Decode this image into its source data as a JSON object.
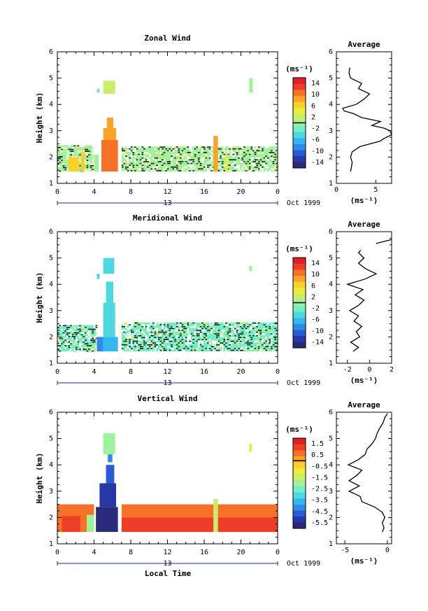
{
  "figure": {
    "xlabel": "Local Time",
    "date_label": "Oct 1999",
    "date_tick": "13",
    "height_label": "Height (km)",
    "unit_label": "(ms⁻¹)",
    "average_title": "Average"
  },
  "colors": {
    "scale": [
      "#2b2a7a",
      "#2837a6",
      "#2a5bd6",
      "#2f8be6",
      "#33b7ef",
      "#4ed8e0",
      "#72eec4",
      "#9ef29c",
      "#c8ee6a",
      "#ecec3c",
      "#fbd02c",
      "#fba428",
      "#f77226",
      "#ee3d28",
      "#e01f24"
    ]
  },
  "chart_data": [
    {
      "type": "heatmap",
      "title": "Zonal Wind",
      "ylabel": "Height (km)",
      "x_ticks": [
        "0",
        "4",
        "8",
        "12",
        "16",
        "20",
        "0"
      ],
      "xlim": [
        0,
        24
      ],
      "ylim": [
        1,
        6
      ],
      "y_ticks": [
        "1",
        "2",
        "3",
        "4",
        "5",
        "6"
      ],
      "colorbar": {
        "unit": "(ms⁻¹)",
        "range": [
          -15,
          15
        ],
        "tick_labels": [
          "14",
          "10",
          "6",
          "2",
          "-2",
          "-6",
          "-10",
          "-14"
        ]
      },
      "regions": [
        {
          "t0": 0.0,
          "t1": 3.9,
          "h0": 1.45,
          "h1": 2.45,
          "value": -1,
          "pattern": true
        },
        {
          "t0": 1.2,
          "t1": 2.4,
          "h0": 1.45,
          "h1": 2.0,
          "value": 6
        },
        {
          "t0": 2.6,
          "t1": 3.0,
          "h0": 1.45,
          "h1": 2.2,
          "value": 5
        },
        {
          "t0": 4.0,
          "t1": 4.5,
          "h0": 1.45,
          "h1": 2.1,
          "value": -1
        },
        {
          "t0": 4.8,
          "t1": 6.6,
          "h0": 1.45,
          "h1": 2.65,
          "value": 9
        },
        {
          "t0": 5.0,
          "t1": 6.4,
          "h0": 2.65,
          "h1": 3.1,
          "value": 8
        },
        {
          "t0": 5.4,
          "t1": 6.1,
          "h0": 3.1,
          "h1": 3.5,
          "value": 7
        },
        {
          "t0": 5.0,
          "t1": 6.3,
          "h0": 4.4,
          "h1": 4.9,
          "value": 1
        },
        {
          "t0": 4.3,
          "t1": 4.6,
          "h0": 4.45,
          "h1": 4.6,
          "value": -3
        },
        {
          "t0": 7.0,
          "t1": 24.0,
          "h0": 1.45,
          "h1": 2.4,
          "value": -1,
          "pattern": true
        },
        {
          "t0": 17.0,
          "t1": 17.5,
          "h0": 1.45,
          "h1": 2.8,
          "value": 7
        },
        {
          "t0": 18.3,
          "t1": 18.6,
          "h0": 1.45,
          "h1": 2.1,
          "value": 3
        },
        {
          "t0": 20.9,
          "t1": 21.3,
          "h0": 4.45,
          "h1": 5.0,
          "value": -1
        }
      ],
      "profile": {
        "title": "Average",
        "xlabel": "(ms⁻¹)",
        "x_ticks": [
          "0",
          "5"
        ],
        "xlim": [
          0,
          7
        ],
        "ylim": [
          1,
          6
        ],
        "y_ticks": [
          "1",
          "2",
          "3",
          "4",
          "5",
          "6"
        ],
        "height": [
          1.45,
          1.6,
          1.8,
          2.0,
          2.2,
          2.4,
          2.6,
          2.7,
          2.85,
          3.0,
          3.1,
          3.2,
          3.35,
          3.5,
          3.65,
          3.75,
          3.85,
          4.0,
          4.2,
          4.4,
          4.6,
          4.8,
          5.0,
          5.2,
          5.4
        ],
        "value": [
          1.8,
          1.9,
          2.0,
          1.8,
          2.0,
          3.0,
          5.5,
          6.0,
          7.0,
          6.8,
          6.0,
          4.5,
          5.6,
          3.2,
          2.2,
          1.0,
          0.8,
          2.5,
          3.5,
          4.2,
          2.8,
          3.2,
          1.8,
          1.6,
          1.7
        ]
      }
    },
    {
      "type": "heatmap",
      "title": "Meridional Wind",
      "ylabel": "Height (km)",
      "x_ticks": [
        "0",
        "4",
        "8",
        "12",
        "16",
        "20",
        "0"
      ],
      "xlim": [
        0,
        24
      ],
      "ylim": [
        1,
        6
      ],
      "y_ticks": [
        "1",
        "2",
        "3",
        "4",
        "5",
        "6"
      ],
      "colorbar": {
        "unit": "(ms⁻¹)",
        "range": [
          -15,
          15
        ],
        "tick_labels": [
          "14",
          "10",
          "6",
          "2",
          "-2",
          "-6",
          "-10",
          "-14"
        ]
      },
      "regions": [
        {
          "t0": 0.0,
          "t1": 4.2,
          "h0": 1.45,
          "h1": 2.45,
          "value": -2,
          "pattern": true
        },
        {
          "t0": 4.3,
          "t1": 5.0,
          "h0": 1.45,
          "h1": 2.0,
          "value": -9
        },
        {
          "t0": 5.0,
          "t1": 6.6,
          "h0": 1.45,
          "h1": 2.0,
          "value": -7
        },
        {
          "t0": 5.0,
          "t1": 6.3,
          "h0": 2.0,
          "h1": 3.3,
          "value": -5
        },
        {
          "t0": 5.3,
          "t1": 6.1,
          "h0": 3.3,
          "h1": 4.1,
          "value": -4
        },
        {
          "t0": 5.0,
          "t1": 6.2,
          "h0": 4.4,
          "h1": 5.0,
          "value": -4
        },
        {
          "t0": 4.3,
          "t1": 4.6,
          "h0": 4.2,
          "h1": 4.4,
          "value": -4
        },
        {
          "t0": 7.0,
          "t1": 24.0,
          "h0": 1.45,
          "h1": 2.55,
          "value": -2,
          "pattern": true
        },
        {
          "t0": 20.9,
          "t1": 21.2,
          "h0": 4.5,
          "h1": 4.7,
          "value": 0
        }
      ],
      "profile": {
        "title": "Average",
        "xlabel": "(ms⁻¹)",
        "x_ticks": [
          "-2",
          "0",
          "2"
        ],
        "xlim": [
          -3,
          2
        ],
        "ylim": [
          1,
          6
        ],
        "y_ticks": [
          "1",
          "2",
          "3",
          "4",
          "5",
          "6"
        ],
        "height": [
          1.45,
          1.6,
          1.8,
          2.0,
          2.2,
          2.4,
          2.6,
          2.8,
          3.0,
          3.2,
          3.4,
          3.6,
          3.8,
          4.0,
          4.2,
          4.4,
          4.6,
          4.8,
          5.0,
          5.2,
          5.3
        ],
        "value": [
          -1.5,
          -1.0,
          -1.7,
          -0.9,
          -1.2,
          -0.7,
          -1.4,
          -1.0,
          -1.8,
          -1.0,
          -0.5,
          -1.3,
          -0.6,
          -2.0,
          -0.4,
          0.6,
          -0.4,
          -1.0,
          -0.5,
          -1.0,
          -0.8
        ],
        "extra_segment": {
          "height": [
            5.55,
            5.7
          ],
          "value": [
            0.6,
            2.0
          ]
        }
      }
    },
    {
      "type": "heatmap",
      "title": "Vertical Wind",
      "ylabel": "Height (km)",
      "x_ticks": [
        "0",
        "4",
        "8",
        "12",
        "16",
        "20",
        "0"
      ],
      "xlim": [
        0,
        24
      ],
      "ylim": [
        1,
        6
      ],
      "y_ticks": [
        "1",
        "2",
        "3",
        "4",
        "5",
        "6"
      ],
      "colorbar": {
        "unit": "(ms⁻¹)",
        "range": [
          -6.0,
          2.0
        ],
        "tick_labels": [
          "1.5",
          "0.5",
          "-0.5",
          "-1.5",
          "-2.5",
          "-3.5",
          "-4.5",
          "-5.5"
        ]
      },
      "regions": [
        {
          "t0": 0.0,
          "t1": 4.0,
          "h0": 1.45,
          "h1": 2.5,
          "value": 0.5
        },
        {
          "t0": 0.5,
          "t1": 2.5,
          "h0": 1.45,
          "h1": 2.05,
          "value": 1.0
        },
        {
          "t0": 3.2,
          "t1": 4.0,
          "h0": 1.45,
          "h1": 2.1,
          "value": -1.8
        },
        {
          "t0": 4.2,
          "t1": 6.6,
          "h0": 1.45,
          "h1": 2.4,
          "value": -5.5
        },
        {
          "t0": 4.6,
          "t1": 6.4,
          "h0": 2.4,
          "h1": 3.3,
          "value": -5.0
        },
        {
          "t0": 5.3,
          "t1": 6.2,
          "h0": 3.3,
          "h1": 4.0,
          "value": -4.5
        },
        {
          "t0": 5.0,
          "t1": 6.3,
          "h0": 4.4,
          "h1": 5.2,
          "value": -2.0
        },
        {
          "t0": 5.5,
          "t1": 6.0,
          "h0": 4.1,
          "h1": 4.4,
          "value": -4.0
        },
        {
          "t0": 7.0,
          "t1": 24.0,
          "h0": 2.0,
          "h1": 2.5,
          "value": 0.5
        },
        {
          "t0": 7.0,
          "t1": 24.0,
          "h0": 1.45,
          "h1": 2.0,
          "value": 1.0
        },
        {
          "t0": 17.0,
          "t1": 17.5,
          "h0": 1.45,
          "h1": 2.7,
          "value": -1.5
        },
        {
          "t0": 20.9,
          "t1": 21.2,
          "h0": 4.5,
          "h1": 4.8,
          "value": -1.2
        }
      ],
      "profile": {
        "title": "Average",
        "xlabel": "(ms⁻¹)",
        "x_ticks": [
          "-5",
          "0"
        ],
        "xlim": [
          -6,
          0.5
        ],
        "ylim": [
          1,
          6
        ],
        "y_ticks": [
          "1",
          "2",
          "3",
          "4",
          "5",
          "6"
        ],
        "height": [
          1.45,
          1.6,
          1.8,
          2.0,
          2.2,
          2.4,
          2.6,
          2.8,
          3.0,
          3.2,
          3.4,
          3.6,
          3.8,
          4.0,
          4.2,
          4.4,
          4.6,
          4.8,
          5.0,
          5.2,
          5.4,
          5.6,
          5.8,
          5.95
        ],
        "value": [
          -0.6,
          -0.4,
          -0.6,
          -0.3,
          -0.6,
          -1.5,
          -3.0,
          -3.2,
          -4.5,
          -3.3,
          -4.5,
          -3.6,
          -3.0,
          -4.6,
          -3.4,
          -2.6,
          -2.4,
          -1.8,
          -1.4,
          -1.2,
          -0.9,
          -0.5,
          -0.3,
          0.0
        ]
      }
    }
  ]
}
